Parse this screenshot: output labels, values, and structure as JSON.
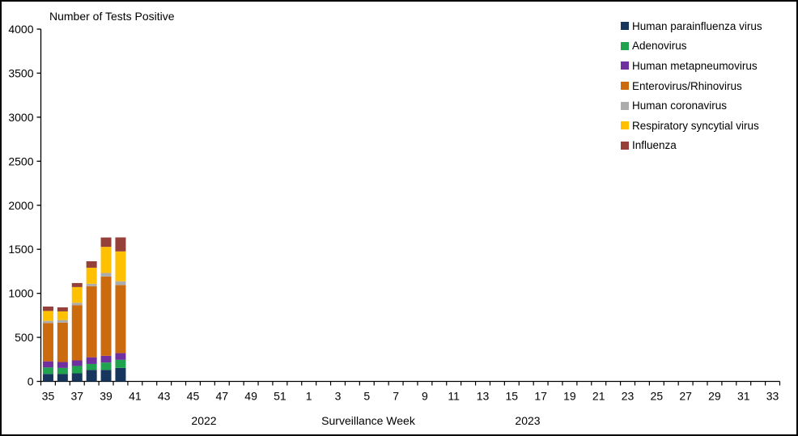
{
  "chart_data": {
    "type": "bar",
    "stacked": true,
    "title": "Number of Tests Positive",
    "xlabel": "Surveillance Week",
    "ylim": [
      0,
      4000
    ],
    "ytick_step": 500,
    "grid": false,
    "legend_position": "top-right",
    "x_groups": [
      {
        "year": "2022",
        "weeks_start": 35,
        "weeks_end": 52
      },
      {
        "year": "2023",
        "weeks_start": 1,
        "weeks_end": 33
      }
    ],
    "categories": [
      35,
      36,
      37,
      38,
      39,
      40,
      41,
      42,
      43,
      44,
      45,
      46,
      47,
      48,
      49,
      50,
      51,
      52,
      1,
      2,
      3,
      4,
      5,
      6,
      7,
      8,
      9,
      10,
      11,
      12,
      13,
      14,
      15,
      16,
      17,
      18,
      19,
      20,
      21,
      22,
      23,
      24,
      25,
      26,
      27,
      28,
      29,
      30,
      31,
      32,
      33
    ],
    "series": [
      {
        "name": "Human parainfluenza virus",
        "color": "#16365D",
        "values": [
          85,
          83,
          92,
          131,
          131,
          153,
          0,
          0,
          0,
          0,
          0,
          0,
          0,
          0,
          0,
          0,
          0,
          0,
          0,
          0,
          0,
          0,
          0,
          0,
          0,
          0,
          0,
          0,
          0,
          0,
          0,
          0,
          0,
          0,
          0,
          0,
          0,
          0,
          0,
          0,
          0,
          0,
          0,
          0,
          0,
          0,
          0,
          0,
          0,
          0,
          0
        ]
      },
      {
        "name": "Adenovirus",
        "color": "#1FA34F",
        "values": [
          73,
          70,
          83,
          67,
          83,
          92,
          0,
          0,
          0,
          0,
          0,
          0,
          0,
          0,
          0,
          0,
          0,
          0,
          0,
          0,
          0,
          0,
          0,
          0,
          0,
          0,
          0,
          0,
          0,
          0,
          0,
          0,
          0,
          0,
          0,
          0,
          0,
          0,
          0,
          0,
          0,
          0,
          0,
          0,
          0,
          0,
          0,
          0,
          0,
          0,
          0
        ]
      },
      {
        "name": "Human metapneumovirus",
        "color": "#7030A0",
        "values": [
          70,
          67,
          64,
          76,
          77,
          76,
          0,
          0,
          0,
          0,
          0,
          0,
          0,
          0,
          0,
          0,
          0,
          0,
          0,
          0,
          0,
          0,
          0,
          0,
          0,
          0,
          0,
          0,
          0,
          0,
          0,
          0,
          0,
          0,
          0,
          0,
          0,
          0,
          0,
          0,
          0,
          0,
          0,
          0,
          0,
          0,
          0,
          0,
          0,
          0,
          0
        ]
      },
      {
        "name": "Enterovirus/Rhinovirus",
        "color": "#CC6B0D",
        "values": [
          434,
          447,
          627,
          807,
          901,
          773,
          0,
          0,
          0,
          0,
          0,
          0,
          0,
          0,
          0,
          0,
          0,
          0,
          0,
          0,
          0,
          0,
          0,
          0,
          0,
          0,
          0,
          0,
          0,
          0,
          0,
          0,
          0,
          0,
          0,
          0,
          0,
          0,
          0,
          0,
          0,
          0,
          0,
          0,
          0,
          0,
          0,
          0,
          0,
          0,
          0
        ]
      },
      {
        "name": "Human coronavirus",
        "color": "#ACACAC",
        "values": [
          25,
          30,
          27,
          27,
          39,
          43,
          0,
          0,
          0,
          0,
          0,
          0,
          0,
          0,
          0,
          0,
          0,
          0,
          0,
          0,
          0,
          0,
          0,
          0,
          0,
          0,
          0,
          0,
          0,
          0,
          0,
          0,
          0,
          0,
          0,
          0,
          0,
          0,
          0,
          0,
          0,
          0,
          0,
          0,
          0,
          0,
          0,
          0,
          0,
          0,
          0
        ]
      },
      {
        "name": "Respiratory syncytial virus",
        "color": "#FFC000",
        "values": [
          113,
          98,
          178,
          183,
          297,
          339,
          0,
          0,
          0,
          0,
          0,
          0,
          0,
          0,
          0,
          0,
          0,
          0,
          0,
          0,
          0,
          0,
          0,
          0,
          0,
          0,
          0,
          0,
          0,
          0,
          0,
          0,
          0,
          0,
          0,
          0,
          0,
          0,
          0,
          0,
          0,
          0,
          0,
          0,
          0,
          0,
          0,
          0,
          0,
          0,
          0
        ]
      },
      {
        "name": "Influenza",
        "color": "#954139",
        "values": [
          50,
          46,
          46,
          73,
          106,
          159,
          0,
          0,
          0,
          0,
          0,
          0,
          0,
          0,
          0,
          0,
          0,
          0,
          0,
          0,
          0,
          0,
          0,
          0,
          0,
          0,
          0,
          0,
          0,
          0,
          0,
          0,
          0,
          0,
          0,
          0,
          0,
          0,
          0,
          0,
          0,
          0,
          0,
          0,
          0,
          0,
          0,
          0,
          0,
          0,
          0
        ]
      }
    ]
  }
}
